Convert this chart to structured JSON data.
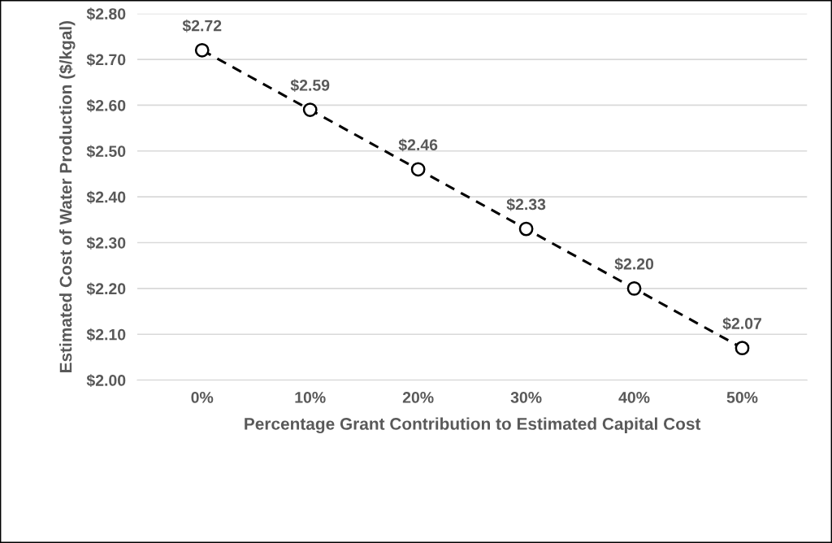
{
  "chart_data": {
    "type": "line",
    "xlabel": "Percentage Grant Contribution to Estimated Capital Cost",
    "ylabel": "Estimated Cost of Water Production ($/kgal)",
    "categories": [
      "0%",
      "10%",
      "20%",
      "30%",
      "40%",
      "50%"
    ],
    "series": [
      {
        "color": "#000000",
        "values": [
          2.72,
          2.59,
          2.46,
          2.33,
          2.2,
          2.07
        ],
        "value_labels": [
          "$2.72",
          "$2.59",
          "$2.46",
          "$2.33",
          "$2.20",
          "$2.07"
        ]
      }
    ],
    "ylim": [
      2.0,
      2.8
    ],
    "yticks": [
      {
        "value": 2.0,
        "label": "$2.00"
      },
      {
        "value": 2.1,
        "label": "$2.10"
      },
      {
        "value": 2.2,
        "label": "$2.20"
      },
      {
        "value": 2.3,
        "label": "$2.30"
      },
      {
        "value": 2.4,
        "label": "$2.40"
      },
      {
        "value": 2.5,
        "label": "$2.50"
      },
      {
        "value": 2.6,
        "label": "$2.60"
      },
      {
        "value": 2.7,
        "label": "$2.70"
      },
      {
        "value": 2.8,
        "label": "$2.80"
      }
    ],
    "grid": "y",
    "marker": "circle",
    "line_style": "dashed"
  }
}
